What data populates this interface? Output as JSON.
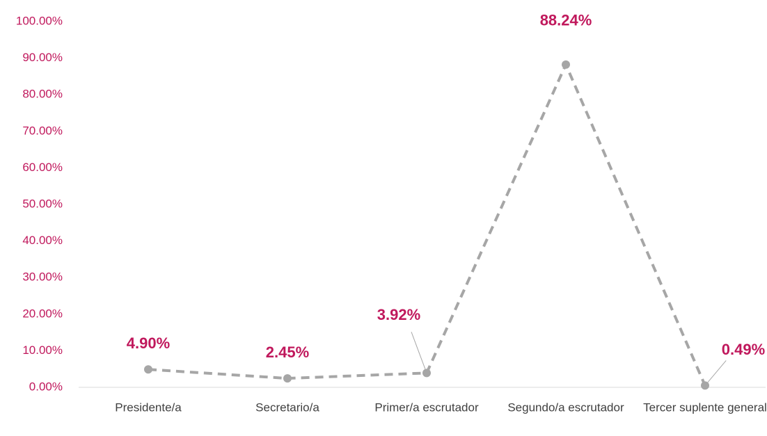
{
  "chart_data": {
    "type": "line",
    "categories": [
      "Presidente/a",
      "Secretario/a",
      "Primer/a escrutador",
      "Segundo/a escrutador",
      "Tercer suplente general"
    ],
    "series": [
      {
        "color": "#a6a6a6",
        "values": [
          4.9,
          2.45,
          3.92,
          88.24,
          0.49
        ],
        "value_labels": [
          "4.90%",
          "2.45%",
          "3.92%",
          "88.24%",
          "0.49%"
        ]
      }
    ],
    "ylim": [
      0,
      100
    ],
    "yticks": [
      {
        "value": 0,
        "label": "0.00%"
      },
      {
        "value": 10,
        "label": "10.00%"
      },
      {
        "value": 20,
        "label": "20.00%"
      },
      {
        "value": 30,
        "label": "30.00%"
      },
      {
        "value": 40,
        "label": "40.00%"
      },
      {
        "value": 50,
        "label": "50.00%"
      },
      {
        "value": 60,
        "label": "60.00%"
      },
      {
        "value": 70,
        "label": "70.00%"
      },
      {
        "value": 80,
        "label": "80.00%"
      },
      {
        "value": 90,
        "label": "90.00%"
      },
      {
        "value": 100,
        "label": "100.00%"
      }
    ]
  }
}
